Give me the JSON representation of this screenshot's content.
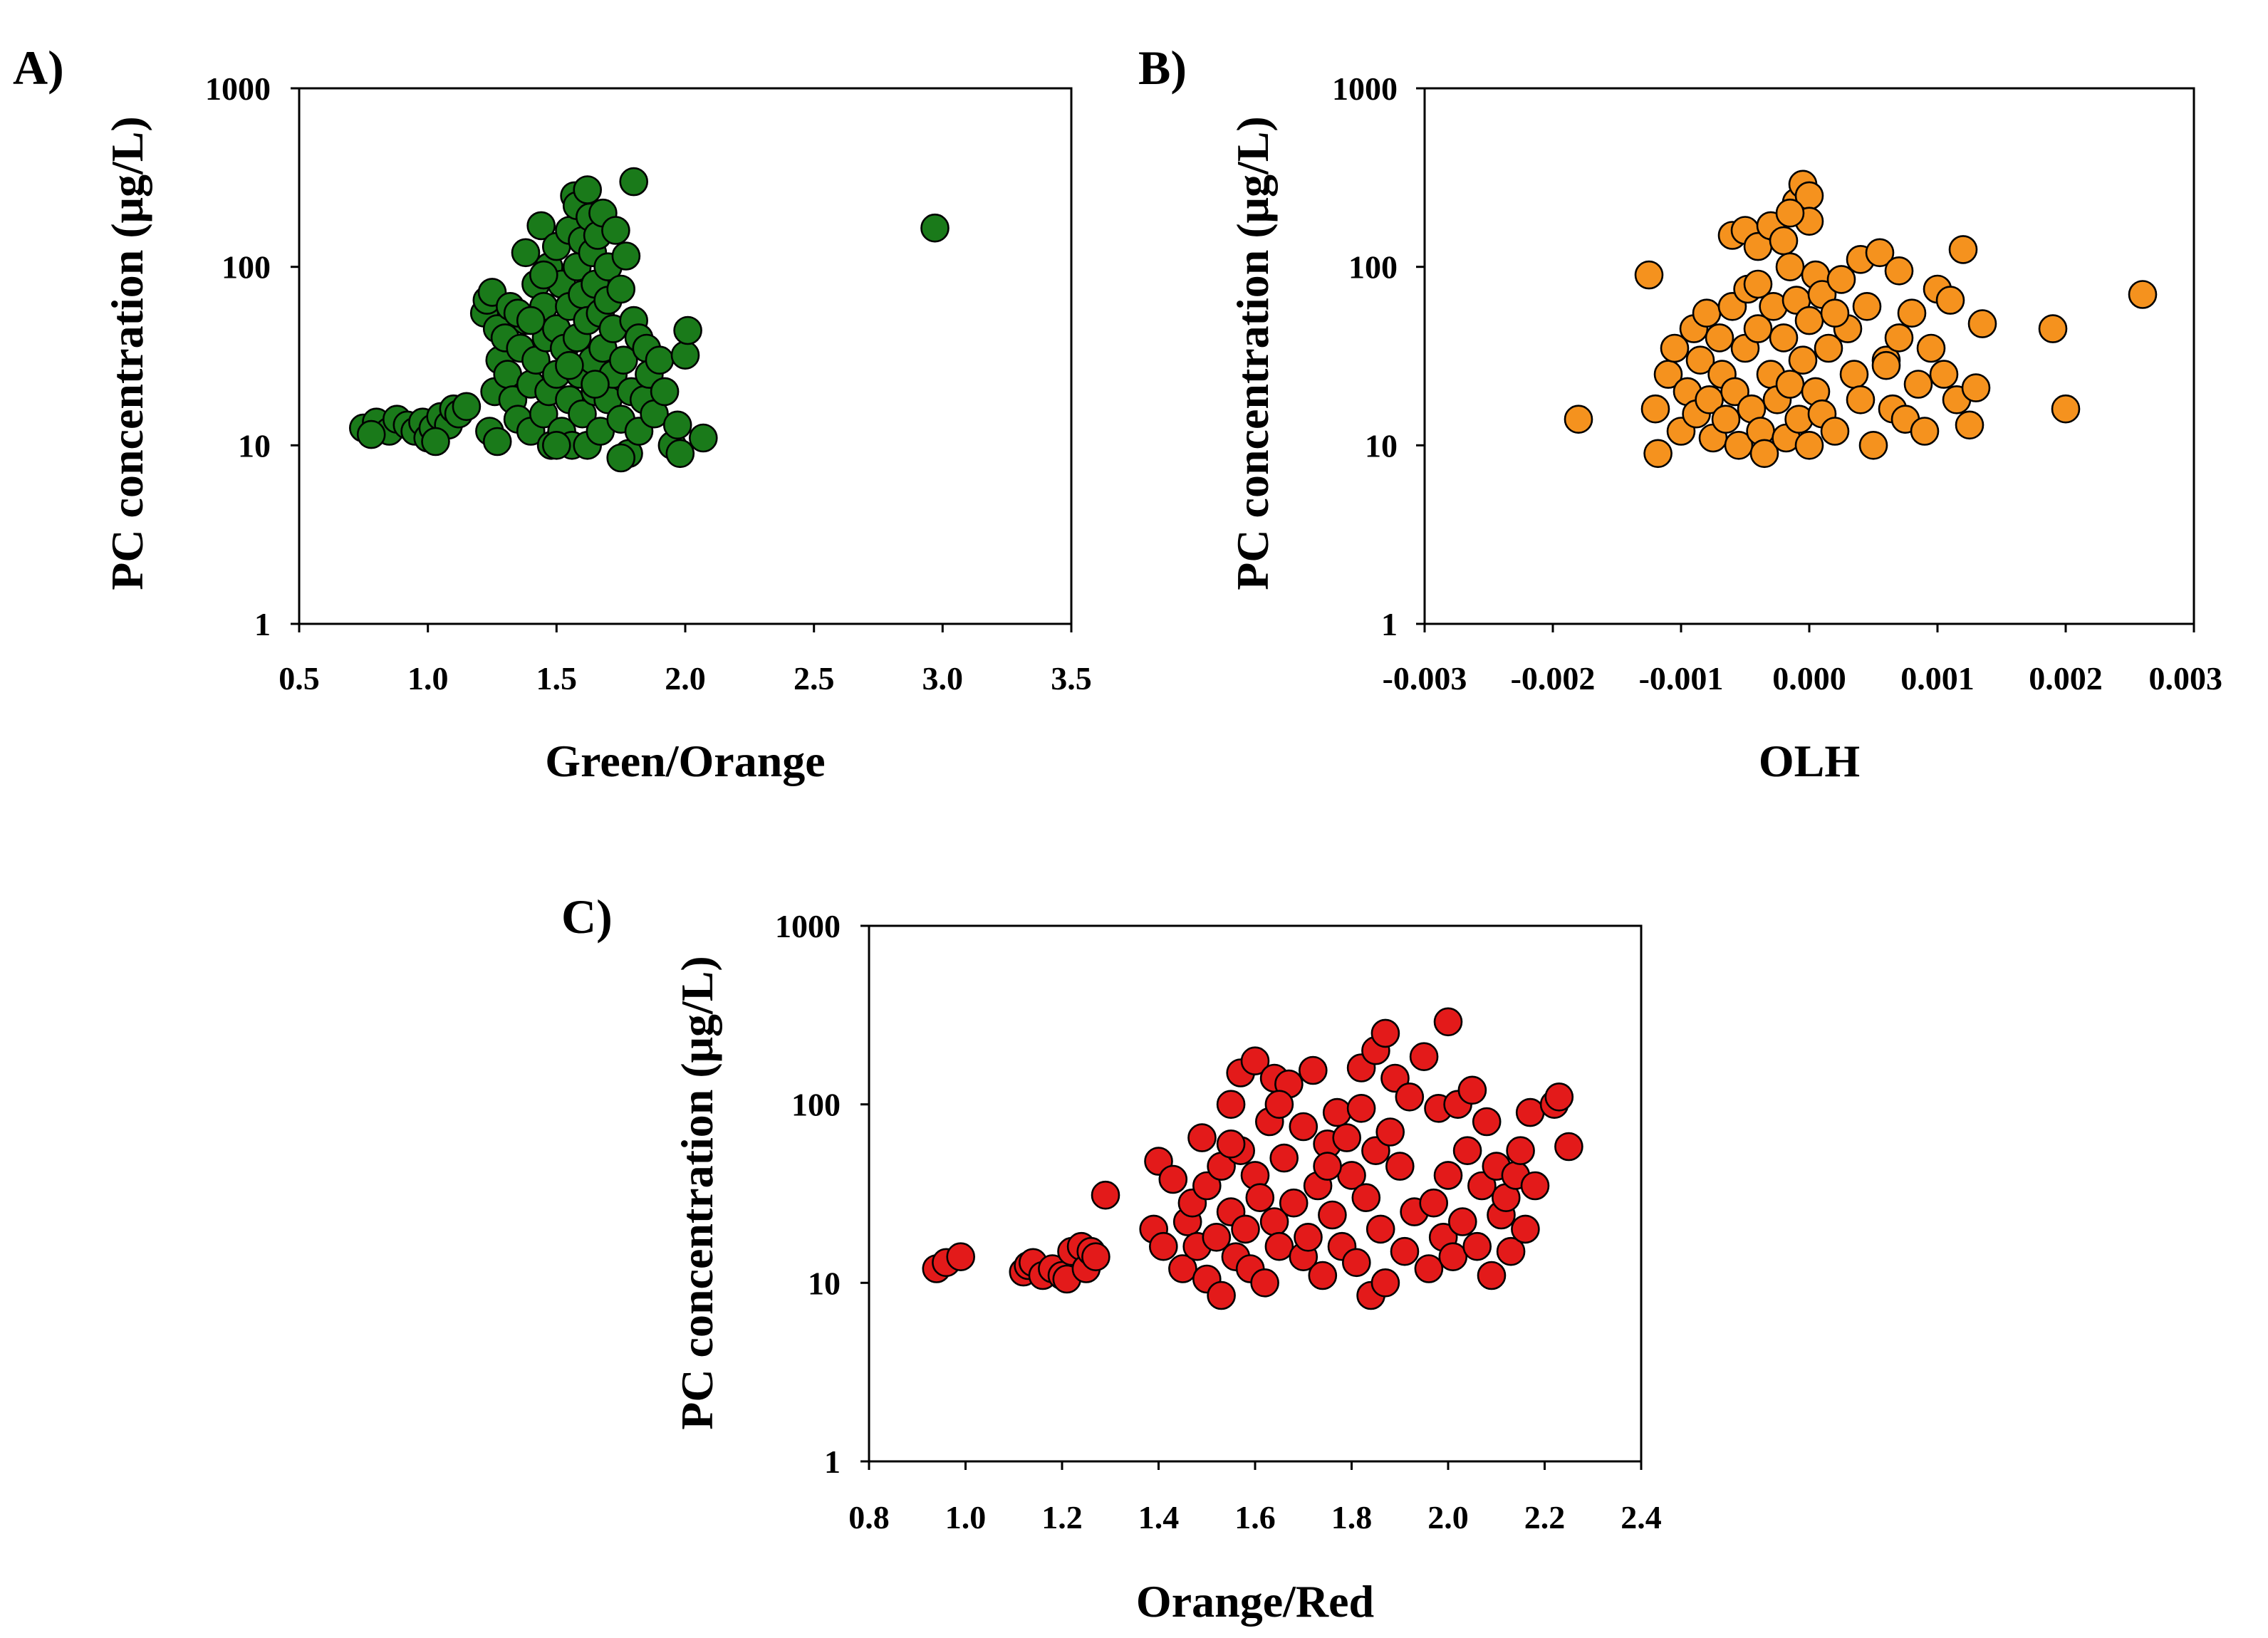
{
  "chart_data": [
    {
      "type": "scatter",
      "panel_label": "A)",
      "xlabel": "Green/Orange",
      "ylabel": "PC concentration (μg/L)",
      "xlim": [
        0.5,
        3.5
      ],
      "ylim": [
        1,
        1000
      ],
      "yscale": "log",
      "xtick_labels": [
        "0.5",
        "1.0",
        "1.5",
        "2.0",
        "2.5",
        "3.0",
        "3.5"
      ],
      "ytick_labels": [
        "1",
        "10",
        "100",
        "1000"
      ],
      "grid": false,
      "color": "#1a7a1a",
      "points": [
        [
          0.75,
          12.5
        ],
        [
          0.8,
          13.5
        ],
        [
          0.85,
          12
        ],
        [
          0.88,
          14
        ],
        [
          0.92,
          13
        ],
        [
          0.95,
          12
        ],
        [
          0.98,
          13.5
        ],
        [
          1.0,
          11
        ],
        [
          1.02,
          12.5
        ],
        [
          1.05,
          14.5
        ],
        [
          1.08,
          13
        ],
        [
          1.1,
          16
        ],
        [
          1.12,
          15
        ],
        [
          1.15,
          16.5
        ],
        [
          1.03,
          10.5
        ],
        [
          0.78,
          11.5
        ],
        [
          1.22,
          55
        ],
        [
          1.23,
          65
        ],
        [
          1.25,
          72
        ],
        [
          1.27,
          45
        ],
        [
          1.28,
          30
        ],
        [
          1.26,
          20
        ],
        [
          1.24,
          12
        ],
        [
          1.27,
          10.5
        ],
        [
          1.3,
          40
        ],
        [
          1.31,
          25
        ],
        [
          1.32,
          60
        ],
        [
          1.33,
          18
        ],
        [
          1.35,
          14
        ],
        [
          1.36,
          35
        ],
        [
          1.38,
          120
        ],
        [
          1.38,
          50
        ],
        [
          1.4,
          22
        ],
        [
          1.4,
          12
        ],
        [
          1.42,
          80
        ],
        [
          1.42,
          30
        ],
        [
          1.44,
          170
        ],
        [
          1.45,
          60
        ],
        [
          1.45,
          15
        ],
        [
          1.46,
          40
        ],
        [
          1.47,
          100
        ],
        [
          1.47,
          20
        ],
        [
          1.48,
          10
        ],
        [
          1.5,
          130
        ],
        [
          1.5,
          45
        ],
        [
          1.5,
          25
        ],
        [
          1.52,
          80
        ],
        [
          1.52,
          12
        ],
        [
          1.53,
          35
        ],
        [
          1.55,
          160
        ],
        [
          1.55,
          60
        ],
        [
          1.55,
          18
        ],
        [
          1.56,
          10
        ],
        [
          1.57,
          250
        ],
        [
          1.58,
          220
        ],
        [
          1.58,
          100
        ],
        [
          1.58,
          40
        ],
        [
          1.59,
          25
        ],
        [
          1.6,
          140
        ],
        [
          1.6,
          70
        ],
        [
          1.6,
          15
        ],
        [
          1.62,
          270
        ],
        [
          1.62,
          50
        ],
        [
          1.62,
          10
        ],
        [
          1.63,
          190
        ],
        [
          1.64,
          120
        ],
        [
          1.64,
          30
        ],
        [
          1.65,
          80
        ],
        [
          1.65,
          20
        ],
        [
          1.66,
          150
        ],
        [
          1.67,
          55
        ],
        [
          1.67,
          12
        ],
        [
          1.68,
          200
        ],
        [
          1.68,
          35
        ],
        [
          1.7,
          100
        ],
        [
          1.7,
          65
        ],
        [
          1.7,
          18
        ],
        [
          1.72,
          45
        ],
        [
          1.72,
          25
        ],
        [
          1.73,
          160
        ],
        [
          1.75,
          75
        ],
        [
          1.75,
          14
        ],
        [
          1.76,
          30
        ],
        [
          1.77,
          115
        ],
        [
          1.78,
          9
        ],
        [
          1.79,
          20
        ],
        [
          1.8,
          300
        ],
        [
          1.8,
          50
        ],
        [
          1.82,
          12
        ],
        [
          1.82,
          40
        ],
        [
          1.84,
          18
        ],
        [
          1.85,
          35
        ],
        [
          1.86,
          25
        ],
        [
          1.88,
          15
        ],
        [
          1.9,
          30
        ],
        [
          1.92,
          20
        ],
        [
          1.95,
          10
        ],
        [
          1.97,
          13
        ],
        [
          1.98,
          9
        ],
        [
          2.0,
          32
        ],
        [
          2.01,
          44
        ],
        [
          2.07,
          11
        ],
        [
          1.35,
          55
        ],
        [
          1.45,
          90
        ],
        [
          1.55,
          28
        ],
        [
          1.65,
          22
        ],
        [
          1.75,
          8.5
        ],
        [
          1.5,
          10
        ],
        [
          1.4,
          50
        ],
        [
          2.97,
          165
        ]
      ]
    },
    {
      "type": "scatter",
      "panel_label": "B)",
      "xlabel": "OLH",
      "ylabel": "PC concentration (μg/L)",
      "xlim": [
        -0.003,
        0.003
      ],
      "ylim": [
        1,
        1000
      ],
      "yscale": "log",
      "xtick_labels": [
        "-0.003",
        "-0.002",
        "-0.001",
        "0.000",
        "0.001",
        "0.002",
        "0.003"
      ],
      "ytick_labels": [
        "1",
        "10",
        "100",
        "1000"
      ],
      "grid": false,
      "color": "#f5921e",
      "points": [
        [
          -0.0018,
          14
        ],
        [
          -0.00125,
          90
        ],
        [
          -0.0012,
          16
        ],
        [
          -0.00118,
          9
        ],
        [
          -0.0011,
          25
        ],
        [
          -0.00105,
          35
        ],
        [
          -0.001,
          12
        ],
        [
          -0.00095,
          20
        ],
        [
          -0.0009,
          45
        ],
        [
          -0.00088,
          15
        ],
        [
          -0.00085,
          30
        ],
        [
          -0.0008,
          55
        ],
        [
          -0.00078,
          18
        ],
        [
          -0.00075,
          11
        ],
        [
          -0.0007,
          40
        ],
        [
          -0.00068,
          25
        ],
        [
          -0.00065,
          14
        ],
        [
          -0.0006,
          150
        ],
        [
          -0.0006,
          60
        ],
        [
          -0.00058,
          20
        ],
        [
          -0.00055,
          10
        ],
        [
          -0.0005,
          160
        ],
        [
          -0.0005,
          35
        ],
        [
          -0.00048,
          75
        ],
        [
          -0.00045,
          16
        ],
        [
          -0.0004,
          130
        ],
        [
          -0.0004,
          45
        ],
        [
          -0.00038,
          12
        ],
        [
          -0.00035,
          9
        ],
        [
          -0.0003,
          170
        ],
        [
          -0.0003,
          25
        ],
        [
          -0.00028,
          60
        ],
        [
          -0.00025,
          18
        ],
        [
          -0.0002,
          140
        ],
        [
          -0.0002,
          40
        ],
        [
          -0.00018,
          11
        ],
        [
          -0.00015,
          100
        ],
        [
          -0.00015,
          22
        ],
        [
          -0.0001,
          230
        ],
        [
          -0.0001,
          65
        ],
        [
          -8e-05,
          14
        ],
        [
          -5e-05,
          290
        ],
        [
          -5e-05,
          30
        ],
        [
          0.0,
          250
        ],
        [
          0.0,
          180
        ],
        [
          0.0,
          50
        ],
        [
          0.0,
          10
        ],
        [
          5e-05,
          90
        ],
        [
          5e-05,
          20
        ],
        [
          0.0001,
          70
        ],
        [
          0.0001,
          15
        ],
        [
          0.00015,
          35
        ],
        [
          0.0002,
          12
        ],
        [
          0.00025,
          85
        ],
        [
          0.0003,
          45
        ],
        [
          0.00035,
          25
        ],
        [
          0.0004,
          110
        ],
        [
          0.0004,
          18
        ],
        [
          0.00045,
          60
        ],
        [
          0.0005,
          10
        ],
        [
          0.00055,
          120
        ],
        [
          0.0006,
          30
        ],
        [
          0.00065,
          16
        ],
        [
          0.0007,
          95
        ],
        [
          0.0007,
          40
        ],
        [
          0.00075,
          14
        ],
        [
          0.0008,
          55
        ],
        [
          0.00085,
          22
        ],
        [
          0.0009,
          12
        ],
        [
          0.00095,
          35
        ],
        [
          0.001,
          75
        ],
        [
          0.00105,
          25
        ],
        [
          0.0011,
          65
        ],
        [
          0.00115,
          18
        ],
        [
          0.0012,
          125
        ],
        [
          0.00125,
          13
        ],
        [
          0.0013,
          21
        ],
        [
          0.00135,
          48
        ],
        [
          0.0019,
          45
        ],
        [
          0.002,
          16
        ],
        [
          0.0026,
          70
        ],
        [
          -0.00015,
          200
        ],
        [
          0.0002,
          55
        ],
        [
          -0.0004,
          80
        ],
        [
          0.0006,
          28
        ]
      ]
    },
    {
      "type": "scatter",
      "panel_label": "C)",
      "xlabel": "Orange/Red",
      "ylabel": "PC concentration (μg/L)",
      "xlim": [
        0.8,
        2.4
      ],
      "ylim": [
        1,
        1000
      ],
      "yscale": "log",
      "xtick_labels": [
        "0.8",
        "1.0",
        "1.2",
        "1.4",
        "1.6",
        "1.8",
        "2.0",
        "2.2",
        "2.4"
      ],
      "ytick_labels": [
        "1",
        "10",
        "100",
        "1000"
      ],
      "grid": false,
      "color": "#e31a1a",
      "points": [
        [
          0.94,
          12
        ],
        [
          0.96,
          13
        ],
        [
          0.99,
          14
        ],
        [
          1.12,
          11.5
        ],
        [
          1.13,
          12.5
        ],
        [
          1.14,
          13
        ],
        [
          1.16,
          11
        ],
        [
          1.18,
          12
        ],
        [
          1.2,
          11
        ],
        [
          1.21,
          10.5
        ],
        [
          1.22,
          15
        ],
        [
          1.24,
          16
        ],
        [
          1.25,
          12
        ],
        [
          1.26,
          15
        ],
        [
          1.27,
          14
        ],
        [
          1.29,
          31
        ],
        [
          1.39,
          20
        ],
        [
          1.4,
          48
        ],
        [
          1.41,
          16
        ],
        [
          1.43,
          38
        ],
        [
          1.45,
          12
        ],
        [
          1.46,
          22
        ],
        [
          1.47,
          28
        ],
        [
          1.48,
          16
        ],
        [
          1.49,
          65
        ],
        [
          1.5,
          10.5
        ],
        [
          1.5,
          35
        ],
        [
          1.52,
          18
        ],
        [
          1.53,
          45
        ],
        [
          1.53,
          8.5
        ],
        [
          1.55,
          100
        ],
        [
          1.55,
          25
        ],
        [
          1.56,
          14
        ],
        [
          1.57,
          150
        ],
        [
          1.57,
          55
        ],
        [
          1.58,
          20
        ],
        [
          1.59,
          12
        ],
        [
          1.6,
          175
        ],
        [
          1.6,
          40
        ],
        [
          1.61,
          30
        ],
        [
          1.62,
          10
        ],
        [
          1.63,
          80
        ],
        [
          1.64,
          140
        ],
        [
          1.64,
          22
        ],
        [
          1.65,
          16
        ],
        [
          1.66,
          50
        ],
        [
          1.67,
          130
        ],
        [
          1.68,
          28
        ],
        [
          1.7,
          14
        ],
        [
          1.7,
          75
        ],
        [
          1.71,
          18
        ],
        [
          1.72,
          155
        ],
        [
          1.73,
          35
        ],
        [
          1.74,
          11
        ],
        [
          1.75,
          60
        ],
        [
          1.76,
          24
        ],
        [
          1.77,
          90
        ],
        [
          1.78,
          16
        ],
        [
          1.79,
          65
        ],
        [
          1.8,
          40
        ],
        [
          1.81,
          13
        ],
        [
          1.82,
          95
        ],
        [
          1.82,
          160
        ],
        [
          1.83,
          30
        ],
        [
          1.84,
          8.5
        ],
        [
          1.85,
          200
        ],
        [
          1.85,
          55
        ],
        [
          1.86,
          20
        ],
        [
          1.87,
          250
        ],
        [
          1.87,
          10
        ],
        [
          1.88,
          70
        ],
        [
          1.89,
          140
        ],
        [
          1.9,
          45
        ],
        [
          1.91,
          15
        ],
        [
          1.92,
          110
        ],
        [
          1.93,
          25
        ],
        [
          1.95,
          185
        ],
        [
          1.96,
          12
        ],
        [
          1.97,
          28
        ],
        [
          1.98,
          95
        ],
        [
          1.99,
          18
        ],
        [
          2.0,
          290
        ],
        [
          2.0,
          40
        ],
        [
          2.01,
          14
        ],
        [
          2.02,
          100
        ],
        [
          2.03,
          22
        ],
        [
          2.04,
          55
        ],
        [
          2.05,
          120
        ],
        [
          2.06,
          16
        ],
        [
          2.07,
          35
        ],
        [
          2.08,
          80
        ],
        [
          2.09,
          11
        ],
        [
          2.1,
          45
        ],
        [
          2.11,
          24
        ],
        [
          2.12,
          30
        ],
        [
          2.13,
          15
        ],
        [
          2.14,
          40
        ],
        [
          2.15,
          55
        ],
        [
          2.16,
          20
        ],
        [
          2.17,
          90
        ],
        [
          2.18,
          35
        ],
        [
          2.22,
          100
        ],
        [
          2.23,
          110
        ],
        [
          2.25,
          58
        ],
        [
          1.65,
          100
        ],
        [
          1.75,
          45
        ],
        [
          1.55,
          60
        ]
      ]
    }
  ]
}
